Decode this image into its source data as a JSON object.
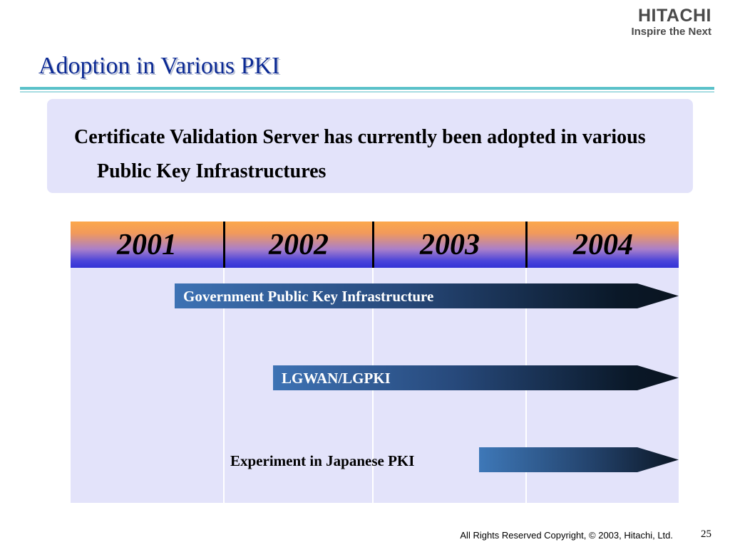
{
  "logo": {
    "brand": "HITACHI",
    "tagline": "Inspire the Next"
  },
  "slide": {
    "title": "Adoption in Various PKI",
    "page_number": "25"
  },
  "intro": {
    "text": "Certificate Validation Server has currently been adopted in various Public Key Infrastructures"
  },
  "timeline": {
    "years": [
      "2001",
      "2002",
      "2003",
      "2004"
    ],
    "initiatives": [
      {
        "label": "Government Public Key Infrastructure"
      },
      {
        "label": "LGWAN/LGPKI"
      },
      {
        "label": "Experiment in Japanese PKI"
      }
    ]
  },
  "footer": {
    "copyright": "All Rights Reserved Copyright, © 2003,  Hitachi, Ltd."
  },
  "colors": {
    "title": "#0c2a94",
    "accent_rule": "#5ac1c9",
    "panel": "#e3e3fa"
  }
}
